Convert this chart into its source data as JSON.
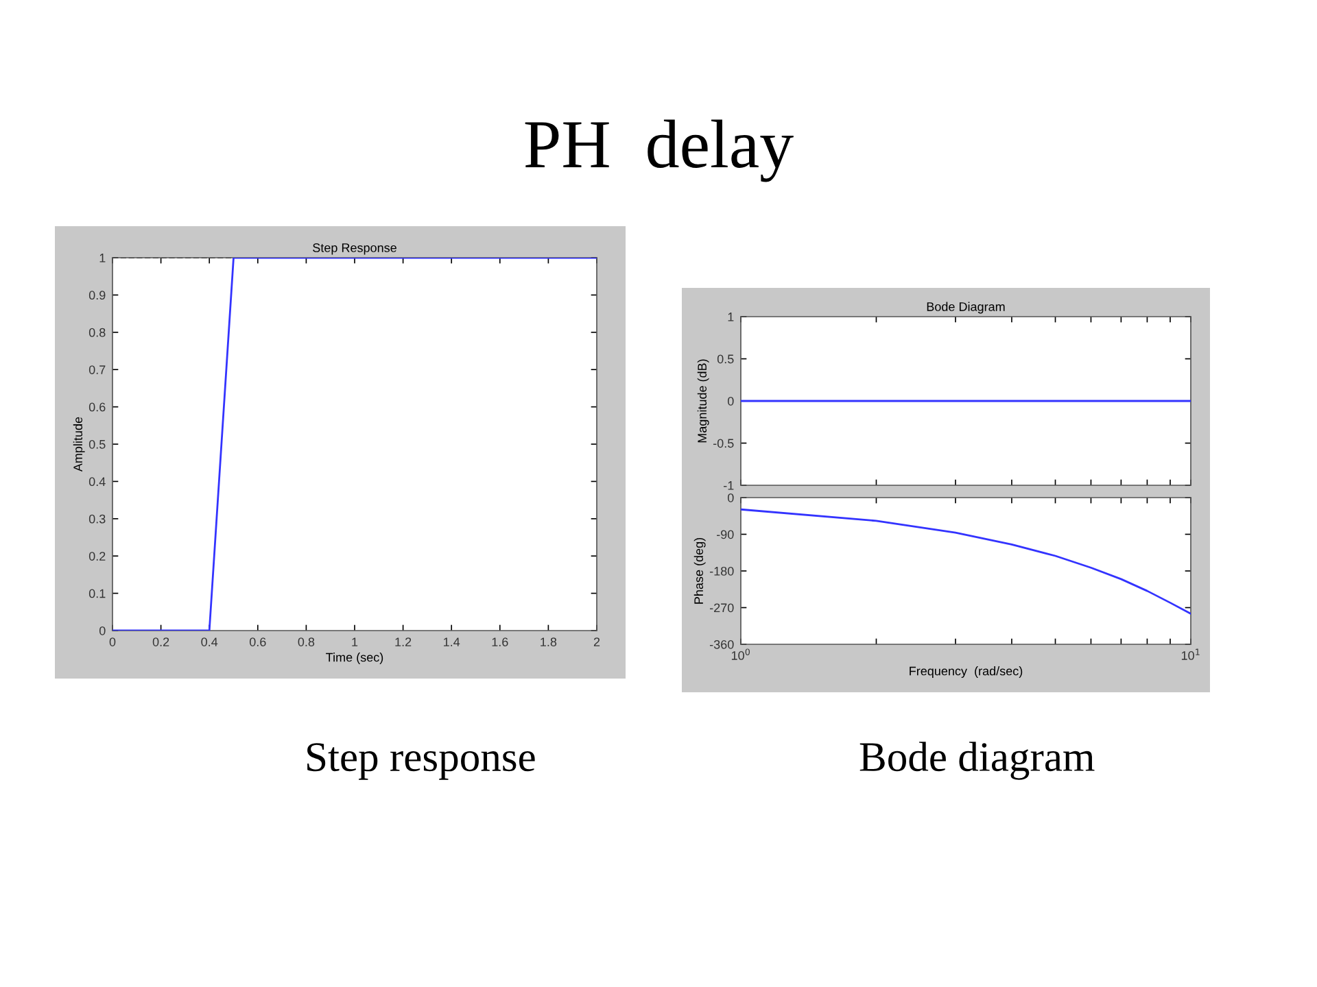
{
  "chart_data": [
    {
      "type": "line",
      "title": "Step Response",
      "xlabel": "Time (sec)",
      "ylabel": "Amplitude",
      "x": [
        0,
        0.4,
        0.5,
        2
      ],
      "series": [
        {
          "color": "#3333ff",
          "values": [
            0,
            0,
            1,
            1
          ]
        }
      ],
      "xlim": [
        0,
        2
      ],
      "xticks": [
        0,
        0.2,
        0.4,
        0.6,
        0.8,
        1,
        1.2,
        1.4,
        1.6,
        1.8,
        2
      ],
      "ylim": [
        0,
        1
      ],
      "yticks": [
        0,
        0.1,
        0.2,
        0.3,
        0.4,
        0.5,
        0.6,
        0.7,
        0.8,
        0.9,
        1
      ],
      "ref_lines": [
        {
          "axis": "y",
          "value": 1,
          "color": "#000000",
          "line_style": "dashed"
        }
      ],
      "annotations": [
        "PH  delay",
        "Step response"
      ],
      "grid": false
    },
    {
      "type": "line",
      "title": "Bode Diagram",
      "ylabel": "Magnitude (dB)",
      "log": "x",
      "x": [
        1,
        10
      ],
      "series": [
        {
          "color": "#3333ff",
          "values": [
            0,
            0
          ]
        }
      ],
      "xlim": [
        1,
        10
      ],
      "xticks": [
        {
          "value": 1,
          "label": null
        },
        {
          "value": 2,
          "label": null
        },
        {
          "value": 3,
          "label": null
        },
        {
          "value": 4,
          "label": null
        },
        {
          "value": 5,
          "label": null
        },
        {
          "value": 6,
          "label": null
        },
        {
          "value": 7,
          "label": null
        },
        {
          "value": 8,
          "label": null
        },
        {
          "value": 9,
          "label": null
        },
        {
          "value": 10,
          "label": null
        }
      ],
      "ylim": [
        -1,
        1
      ],
      "yticks": [
        -1,
        -0.5,
        0,
        0.5,
        1
      ],
      "tick_labels": "y",
      "grid": false
    },
    {
      "type": "line",
      "xlabel": "Frequency  (rad/sec)",
      "ylabel": "Phase (deg)",
      "log": "x",
      "x": [
        1,
        2,
        3,
        4,
        5,
        6,
        7,
        8,
        9,
        10
      ],
      "series": [
        {
          "color": "#3333ff",
          "values": [
            -29,
            -57,
            -86,
            -115,
            -143,
            -172,
            -200,
            -229,
            -258,
            -285
          ]
        }
      ],
      "xlim": [
        1,
        10
      ],
      "xticks": [
        {
          "value": 1,
          "label": "10$^{0}$"
        },
        {
          "value": 2,
          "label": null
        },
        {
          "value": 3,
          "label": null
        },
        {
          "value": 4,
          "label": null
        },
        {
          "value": 5,
          "label": null
        },
        {
          "value": 6,
          "label": null
        },
        {
          "value": 7,
          "label": null
        },
        {
          "value": 8,
          "label": null
        },
        {
          "value": 9,
          "label": null
        },
        {
          "value": 10,
          "label": "10$^{1}$"
        }
      ],
      "ylim": [
        -360,
        0
      ],
      "yticks": [
        -360,
        -270,
        -180,
        -90,
        0
      ],
      "annotations": [
        "Bode diagram"
      ],
      "grid": false
    }
  ]
}
